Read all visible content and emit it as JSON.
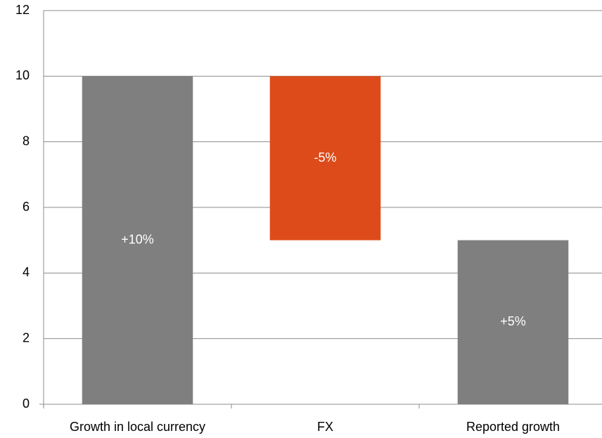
{
  "chart_data": {
    "type": "waterfall",
    "categories": [
      "Growth in local currency",
      "FX",
      "Reported growth"
    ],
    "values": [
      10,
      -5,
      5
    ],
    "value_labels": [
      "+10%",
      "-5%",
      "+5%"
    ],
    "measure": [
      "absolute",
      "relative",
      "total"
    ],
    "colors": [
      "#7f7f7f",
      "#dd4b1a",
      "#7f7f7f"
    ],
    "ylim": [
      0,
      12
    ],
    "yticks": [
      0,
      2,
      4,
      6,
      8,
      10,
      12
    ],
    "grid": true
  }
}
